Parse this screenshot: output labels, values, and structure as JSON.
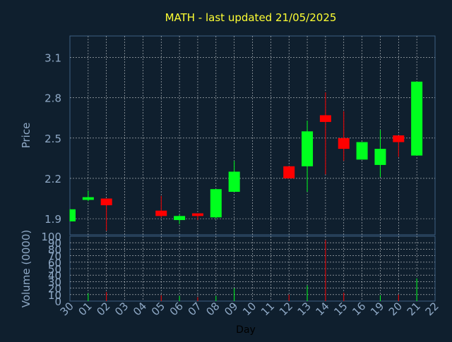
{
  "chart_data": {
    "type": "candlestick",
    "title": "MATH - last updated 21/05/2025",
    "xlabel": "Day",
    "ylabel_price": "Price",
    "ylabel_volume": "Volume (0000)",
    "categories": [
      "30",
      "01",
      "02",
      "03",
      "04",
      "05",
      "06",
      "07",
      "08",
      "09",
      "10",
      "11",
      "12",
      "13",
      "14",
      "15",
      "16",
      "19",
      "20",
      "21",
      "22"
    ],
    "price_ticks": [
      "3.1",
      "2.8",
      "2.5",
      "2.2",
      "1.9"
    ],
    "price_tick_values": [
      3.1,
      2.8,
      2.5,
      2.2,
      1.9
    ],
    "price_ylim": [
      1.78,
      3.26
    ],
    "volume_ticks": [
      "100",
      "90",
      "80",
      "70",
      "60",
      "50",
      "40",
      "30",
      "20",
      "10",
      "0"
    ],
    "volume_tick_values": [
      100,
      90,
      80,
      70,
      60,
      50,
      40,
      30,
      20,
      10,
      0
    ],
    "volume_ylim": [
      0,
      100
    ],
    "grid": true,
    "candles": [
      {
        "day": "30",
        "open": 1.88,
        "high": 1.97,
        "low": 1.88,
        "close": 1.97
      },
      {
        "day": "01",
        "open": 2.04,
        "high": 2.11,
        "low": 2.03,
        "close": 2.06
      },
      {
        "day": "02",
        "open": 2.05,
        "high": 2.05,
        "low": 1.81,
        "close": 2.0
      },
      {
        "day": "05",
        "open": 1.96,
        "high": 2.07,
        "low": 1.91,
        "close": 1.92
      },
      {
        "day": "06",
        "open": 1.89,
        "high": 1.93,
        "low": 1.86,
        "close": 1.92
      },
      {
        "day": "07",
        "open": 1.94,
        "high": 1.94,
        "low": 1.89,
        "close": 1.92
      },
      {
        "day": "08",
        "open": 1.91,
        "high": 2.12,
        "low": 1.9,
        "close": 2.12
      },
      {
        "day": "09",
        "open": 2.1,
        "high": 2.33,
        "low": 2.1,
        "close": 2.25
      },
      {
        "day": "12",
        "open": 2.29,
        "high": 2.29,
        "low": 2.2,
        "close": 2.2
      },
      {
        "day": "13",
        "open": 2.29,
        "high": 2.63,
        "low": 2.1,
        "close": 2.55
      },
      {
        "day": "14",
        "open": 2.67,
        "high": 2.84,
        "low": 2.23,
        "close": 2.62
      },
      {
        "day": "15",
        "open": 2.5,
        "high": 2.7,
        "low": 2.33,
        "close": 2.42
      },
      {
        "day": "16",
        "open": 2.34,
        "high": 2.47,
        "low": 2.34,
        "close": 2.47
      },
      {
        "day": "19",
        "open": 2.3,
        "high": 2.56,
        "low": 2.21,
        "close": 2.42
      },
      {
        "day": "20",
        "open": 2.52,
        "high": 2.52,
        "low": 2.36,
        "close": 2.47
      },
      {
        "day": "21",
        "open": 2.37,
        "high": 2.92,
        "low": 2.37,
        "close": 2.92
      }
    ],
    "volumes": [
      {
        "day": "01",
        "value": 12
      },
      {
        "day": "02",
        "value": 14
      },
      {
        "day": "05",
        "value": 9
      },
      {
        "day": "06",
        "value": 8
      },
      {
        "day": "07",
        "value": 6
      },
      {
        "day": "08",
        "value": 8
      },
      {
        "day": "09",
        "value": 20
      },
      {
        "day": "12",
        "value": 10
      },
      {
        "day": "13",
        "value": 24
      },
      {
        "day": "14",
        "value": 94
      },
      {
        "day": "15",
        "value": 13
      },
      {
        "day": "19",
        "value": 9
      },
      {
        "day": "20",
        "value": 10
      },
      {
        "day": "21",
        "value": 35
      }
    ],
    "colors": {
      "background": "#0f1f2e",
      "title": "#ffff33",
      "axis_text": "#8fa9c6",
      "up": "#00ff1e",
      "down": "#ff0000",
      "grid": "#ffffff",
      "axis_line": "#3d5f82"
    }
  }
}
